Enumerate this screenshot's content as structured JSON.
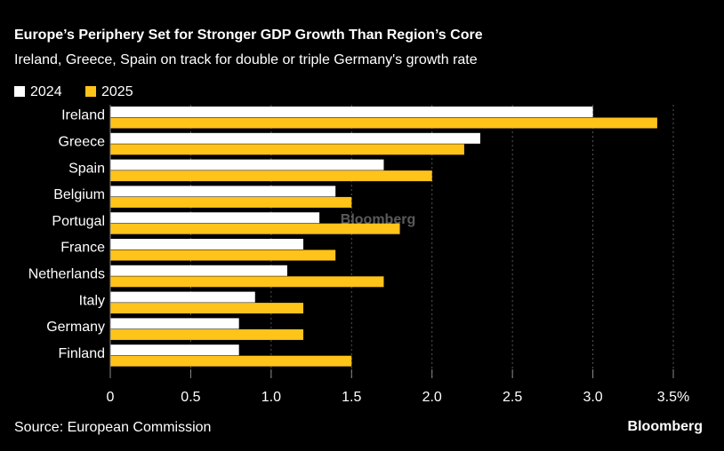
{
  "chart_data": {
    "type": "hbar",
    "title": "Europe’s Periphery Set for Stronger GDP Growth Than Region’s Core",
    "subtitle": "Ireland, Greece, Spain on track for double or triple Germany's growth rate",
    "categories": [
      "Ireland",
      "Greece",
      "Spain",
      "Belgium",
      "Portugal",
      "France",
      "Netherlands",
      "Italy",
      "Germany",
      "Finland"
    ],
    "series": [
      {
        "name": "2024",
        "color": "#ffffff",
        "values": [
          3.0,
          2.3,
          1.7,
          1.4,
          1.3,
          1.2,
          1.1,
          0.9,
          0.8,
          0.8
        ]
      },
      {
        "name": "2025",
        "color": "#ffc31a",
        "values": [
          3.4,
          2.2,
          2.0,
          1.5,
          1.8,
          1.4,
          1.7,
          1.2,
          1.2,
          1.5
        ]
      }
    ],
    "xlim": [
      0,
      3.5
    ],
    "xticks": [
      0,
      0.5,
      {
        "value": 1,
        "label": "1.0"
      },
      1.5,
      {
        "value": 2,
        "label": "2.0"
      },
      2.5,
      {
        "value": 3,
        "label": "3.0"
      },
      {
        "value": 3.5,
        "label": "3.5%"
      }
    ],
    "legend": "top-left",
    "source": "Source: European Commission",
    "watermark": "Bloomberg",
    "logo": "Bloomberg"
  }
}
